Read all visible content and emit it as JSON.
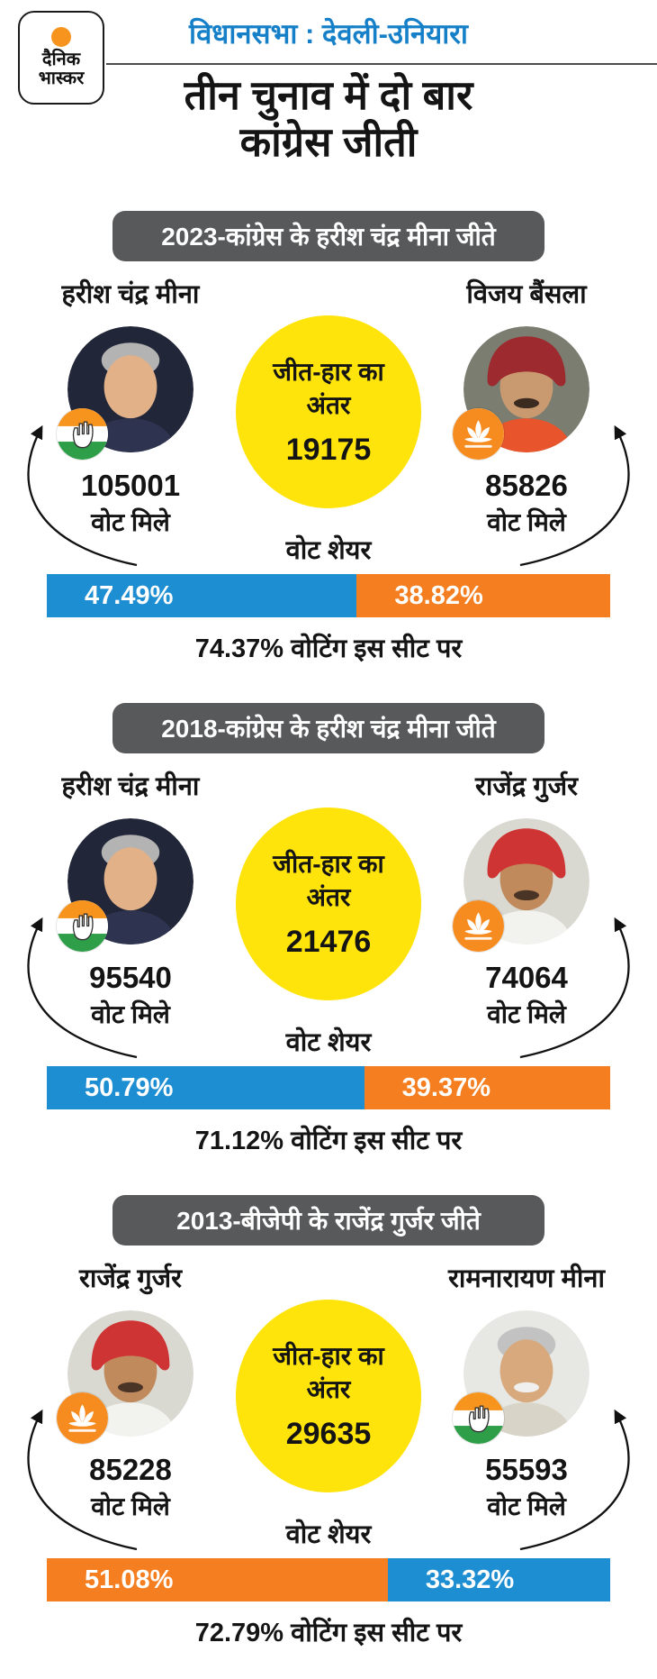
{
  "brand": {
    "logo_line1": "दैनिक",
    "logo_line2": "भास्कर"
  },
  "header": {
    "kicker": "विधानसभा : देवली-उनियारा",
    "title_line1": "तीन चुनाव में दो बार",
    "title_line2": "कांग्रेस जीती"
  },
  "labels": {
    "margin_line1": "जीत-हार का",
    "margin_line2": "अंतर",
    "votes": "वोट मिले",
    "share": "वोट शेयर"
  },
  "colors": {
    "congress_blue": "#1e8ed3",
    "bjp_orange": "#f57e20",
    "highlight_yellow": "#ffe40b",
    "banner_gray": "#58595b",
    "kicker_blue": "#1580c8",
    "logo_orange": "#f7941e"
  },
  "sections": [
    {
      "banner": "2023-कांग्रेस के हरीश चंद्र मीना जीते",
      "margin": "19175",
      "turnout": "74.37% वोटिंग इस सीट पर",
      "left": {
        "name": "हरीश चंद्र मीना",
        "votes": "105001",
        "share": "47.49%",
        "party": "congress",
        "photo": "harish",
        "color": "#1e8ed3"
      },
      "right": {
        "name": "विजय बैंसला",
        "votes": "85826",
        "share": "38.82%",
        "party": "bjp",
        "photo": "vijay",
        "color": "#f57e20"
      }
    },
    {
      "banner": "2018-कांग्रेस के हरीश चंद्र मीना जीते",
      "margin": "21476",
      "turnout": "71.12% वोटिंग इस सीट पर",
      "left": {
        "name": "हरीश चंद्र मीना",
        "votes": "95540",
        "share": "50.79%",
        "party": "congress",
        "photo": "harish",
        "color": "#1e8ed3"
      },
      "right": {
        "name": "राजेंद्र गुर्जर",
        "votes": "74064",
        "share": "39.37%",
        "party": "bjp",
        "photo": "rajendra",
        "color": "#f57e20"
      }
    },
    {
      "banner": "2013-बीजेपी के राजेंद्र गुर्जर जीते",
      "margin": "29635",
      "turnout": "72.79% वोटिंग इस सीट पर",
      "left": {
        "name": "राजेंद्र गुर्जर",
        "votes": "85228",
        "share": "51.08%",
        "party": "bjp",
        "photo": "rajendra",
        "color": "#f57e20"
      },
      "right": {
        "name": "रामनारायण मीना",
        "votes": "55593",
        "share": "33.32%",
        "party": "congress",
        "photo": "ramnarayan",
        "color": "#1e8ed3"
      }
    }
  ],
  "chart_data": [
    {
      "type": "bar",
      "title": "2023-कांग्रेस के हरीश चंद्र मीना जीते",
      "categories": [
        "हरीश चंद्र मीना (कांग्रेस)",
        "विजय बैंसला (बीजेपी)"
      ],
      "series": [
        {
          "name": "वोट मिले",
          "values": [
            105001,
            85826
          ]
        },
        {
          "name": "वोट शेयर %",
          "values": [
            47.49,
            38.82
          ]
        }
      ],
      "annotations": {
        "जीत-हार का अंतर": 19175,
        "वोटिंग इस सीट पर %": 74.37
      }
    },
    {
      "type": "bar",
      "title": "2018-कांग्रेस के हरीश चंद्र मीना जीते",
      "categories": [
        "हरीश चंद्र मीना (कांग्रेस)",
        "राजेंद्र गुर्जर (बीजेपी)"
      ],
      "series": [
        {
          "name": "वोट मिले",
          "values": [
            95540,
            74064
          ]
        },
        {
          "name": "वोट शेयर %",
          "values": [
            50.79,
            39.37
          ]
        }
      ],
      "annotations": {
        "जीत-हार का अंतर": 21476,
        "वोटिंग इस सीट पर %": 71.12
      }
    },
    {
      "type": "bar",
      "title": "2013-बीजेपी के राजेंद्र गुर्जर जीते",
      "categories": [
        "राजेंद्र गुर्जर (बीजेपी)",
        "रामनारायण मीना (कांग्रेस)"
      ],
      "series": [
        {
          "name": "वोट मिले",
          "values": [
            85228,
            55593
          ]
        },
        {
          "name": "वोट शेयर %",
          "values": [
            51.08,
            33.32
          ]
        }
      ],
      "annotations": {
        "जीत-हार का अंतर": 29635,
        "वोटिंग इस सीट पर %": 72.79
      }
    }
  ]
}
